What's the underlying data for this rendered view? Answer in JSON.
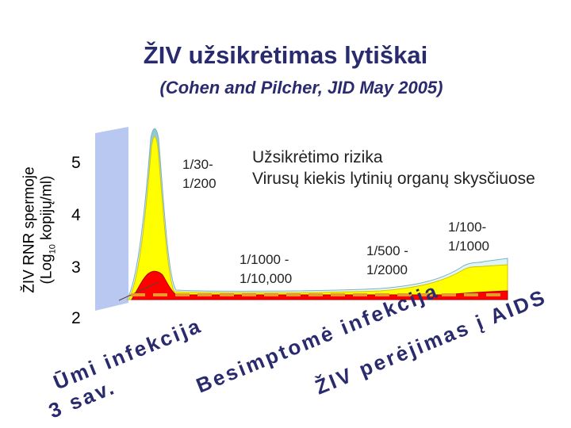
{
  "chart_data": {
    "type": "area",
    "title": "ŽIV užsikrėtimas lytiškai",
    "subtitle": "(Cohen and Pilcher, JID May 2005)",
    "ylabel_line1": "ŽIV RNR spermoje",
    "ylabel_line2_pre": "(Log",
    "ylabel_line2_sub": "10",
    "ylabel_line2_post": " kopijų/ml)",
    "y_ticks": [
      "5",
      "4",
      "3",
      "2"
    ],
    "legend": {
      "line1": "Užsikrėtimo rizika",
      "line2": "Virusų kiekis lytinių organų skysčiuose"
    },
    "annotations": [
      {
        "line1": "1/30-",
        "line2": "1/200"
      },
      {
        "line1": "1/1000 -",
        "line2": "1/10,000"
      },
      {
        "line1": "1/500 -",
        "line2": "1/2000"
      },
      {
        "line1": "1/100-",
        "line2": "1/1000"
      }
    ],
    "phases": [
      {
        "line1": "Ūmi infekcija",
        "line2": "3 sav."
      },
      {
        "line1": "Besimptomė infekcija"
      },
      {
        "line1": "ŽIV perėjimas į AIDS"
      }
    ],
    "colors": {
      "title": "#2a2a6e",
      "fill_outer": "#bfe7ec",
      "fill_yellow": "#ffff00",
      "fill_red": "#ff0000",
      "shade_band": "#b8c8f0",
      "dashed_line": "#e89a2a",
      "phase_text": "#2a2a6e"
    }
  }
}
